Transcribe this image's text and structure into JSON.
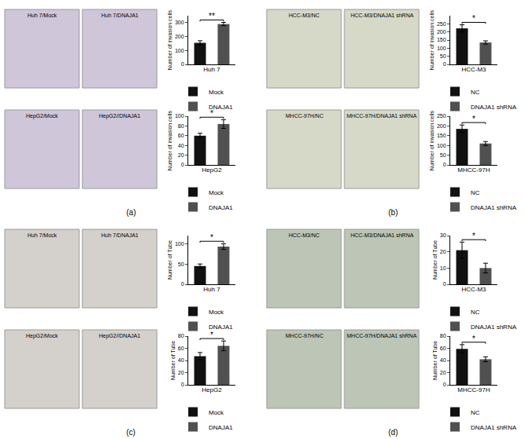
{
  "panel_labels": [
    "(a)",
    "(b)",
    "(c)",
    "(d)"
  ],
  "chart_data": [
    {
      "type": "bar",
      "images": [
        "Huh 7/Mock",
        "Huh 7/DNAJA1"
      ],
      "x_label": "Huh 7",
      "y_label": "Number of invasion cells",
      "categories": [
        "Mock",
        "DNAJA1"
      ],
      "values": [
        155,
        290
      ],
      "errors": [
        15,
        12
      ],
      "colors": [
        "#111111",
        "#505050"
      ],
      "annotation": "**",
      "ylim": [
        0,
        350
      ],
      "yticks": [
        0,
        100,
        200,
        300
      ],
      "tick_labels": "y",
      "legend": "bottom"
    },
    {
      "type": "bar",
      "images": [
        "HepG2/Mock",
        "HepG2//DNAJA1"
      ],
      "x_label": "HepG2",
      "y_label": "Number of invasion cells",
      "categories": [
        "Mock",
        "DNAJA1"
      ],
      "values": [
        60,
        84
      ],
      "errors": [
        5,
        9
      ],
      "colors": [
        "#111111",
        "#505050"
      ],
      "annotation": "*",
      "ylim": [
        0,
        100
      ],
      "yticks": [
        0,
        20,
        40,
        60,
        80,
        100
      ],
      "tick_labels": "y",
      "legend": "bottom"
    },
    {
      "type": "bar",
      "images": [
        "HCC-M3/NC",
        "HCC-M3/DNAJA1 shRNA"
      ],
      "x_label": "HCC-M3",
      "y_label": "Number of invasion cells",
      "categories": [
        "NC",
        "DNAJA1 shRNA"
      ],
      "values": [
        222,
        135
      ],
      "errors": [
        22,
        10
      ],
      "colors": [
        "#111111",
        "#505050"
      ],
      "annotation": "*",
      "ylim": [
        0,
        300
      ],
      "yticks": [
        0,
        50,
        100,
        150,
        200,
        250
      ],
      "tick_labels": "y",
      "legend": "bottom"
    },
    {
      "type": "bar",
      "images": [
        "MHCC-97H/NC",
        "MHCC-97H/DNAJA1 shRNA"
      ],
      "x_label": "MHCC-97H",
      "y_label": "Number of invasion cells",
      "categories": [
        "NC",
        "DNAJA1 shRNA"
      ],
      "values": [
        185,
        110
      ],
      "errors": [
        20,
        10
      ],
      "colors": [
        "#111111",
        "#505050"
      ],
      "annotation": "*",
      "ylim": [
        0,
        250
      ],
      "yticks": [
        0,
        50,
        100,
        150,
        200,
        250
      ],
      "tick_labels": "y",
      "legend": "bottom"
    },
    {
      "type": "bar",
      "images": [
        "Huh 7/Mock",
        "Huh 7/DNAJA1"
      ],
      "x_label": "Huh 7",
      "y_label": "Number of Tube",
      "categories": [
        "Mock",
        "DNAJA1"
      ],
      "values": [
        45,
        93
      ],
      "errors": [
        5,
        7
      ],
      "colors": [
        "#111111",
        "#505050"
      ],
      "annotation": "*",
      "ylim": [
        0,
        120
      ],
      "yticks": [
        0,
        50,
        100
      ],
      "tick_labels": "y",
      "legend": "bottom"
    },
    {
      "type": "bar",
      "images": [
        "HepG2/Mock",
        "HepG2//DNAJA1"
      ],
      "x_label": "HepG2",
      "y_label": "Number of Tube",
      "categories": [
        "Mock",
        "DNAJA1"
      ],
      "values": [
        47,
        64
      ],
      "errors": [
        6,
        8
      ],
      "colors": [
        "#111111",
        "#505050"
      ],
      "annotation": "*",
      "ylim": [
        0,
        80
      ],
      "yticks": [
        0,
        20,
        40,
        60,
        80
      ],
      "tick_labels": "y",
      "legend": "bottom"
    },
    {
      "type": "bar",
      "images": [
        "HCC-M3/NC",
        "HCC-M3/DNAJA1 shRNA"
      ],
      "x_label": "HCC-M3",
      "y_label": "Number of Tube",
      "categories": [
        "NC",
        "DNAJA1 shRNA"
      ],
      "values": [
        21,
        10
      ],
      "errors": [
        5,
        3
      ],
      "colors": [
        "#111111",
        "#505050"
      ],
      "annotation": "*",
      "ylim": [
        0,
        30
      ],
      "yticks": [
        0,
        10,
        20,
        30
      ],
      "tick_labels": "y",
      "legend": "bottom"
    },
    {
      "type": "bar",
      "images": [
        "MHCC-97H/NC",
        "MHCC-97H/DNAJA1 shRNA"
      ],
      "x_label": "MHCC-97H",
      "y_label": "Number of Tube",
      "categories": [
        "NC",
        "DNAJA1 shRNA"
      ],
      "values": [
        59,
        42
      ],
      "errors": [
        7,
        4
      ],
      "colors": [
        "#111111",
        "#505050"
      ],
      "annotation": "*",
      "ylim": [
        0,
        80
      ],
      "yticks": [
        0,
        20,
        40,
        60,
        80
      ],
      "tick_labels": "y",
      "legend": "bottom"
    }
  ]
}
